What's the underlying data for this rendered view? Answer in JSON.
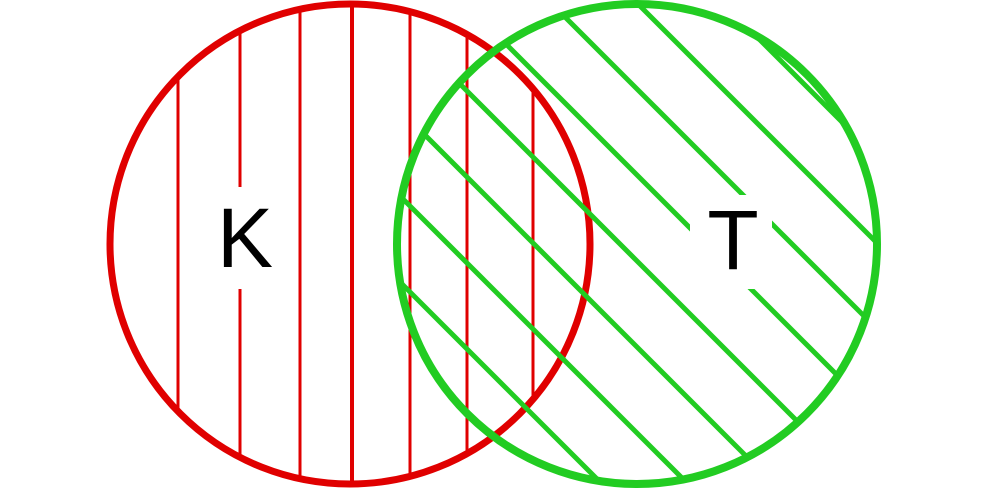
{
  "diagram": {
    "type": "venn",
    "sets": [
      {
        "id": "K",
        "label": "K",
        "color": "#e00000",
        "hatch": "vertical"
      },
      {
        "id": "T",
        "label": "T",
        "color": "#22cc22",
        "hatch": "diagonal"
      }
    ]
  }
}
